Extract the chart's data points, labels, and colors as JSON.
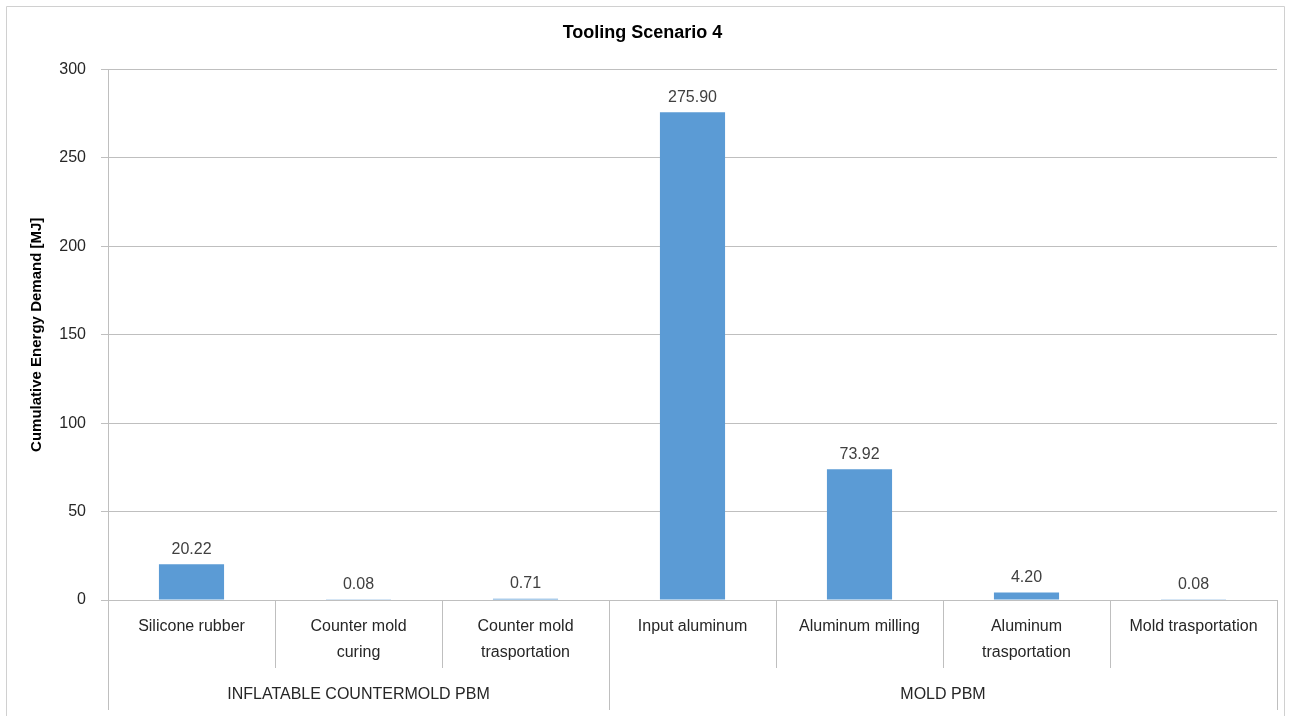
{
  "chart_data": {
    "type": "bar",
    "title": "Tooling Scenario 4",
    "ylabel": "Cumulative Energy Demand [MJ]",
    "categories": [
      "Silicone rubber",
      "Counter mold curing",
      "Counter mold trasportation",
      "Input aluminum",
      "Aluminum milling",
      "Aluminum trasportation",
      "Mold trasportation"
    ],
    "values": [
      20.22,
      0.08,
      0.71,
      275.9,
      73.92,
      4.2,
      0.08
    ],
    "value_labels": [
      "20.22",
      "0.08",
      "0.71",
      "275.90",
      "73.92",
      "4.20",
      "0.08"
    ],
    "color": "#5b9bd5",
    "ylim": [
      0,
      300
    ],
    "yticks": [
      0,
      50,
      100,
      150,
      200,
      250,
      300
    ],
    "grid": "y",
    "annotations": [
      "INFLATABLE COUNTERMOLD PBM",
      "MOLD PBM"
    ]
  }
}
